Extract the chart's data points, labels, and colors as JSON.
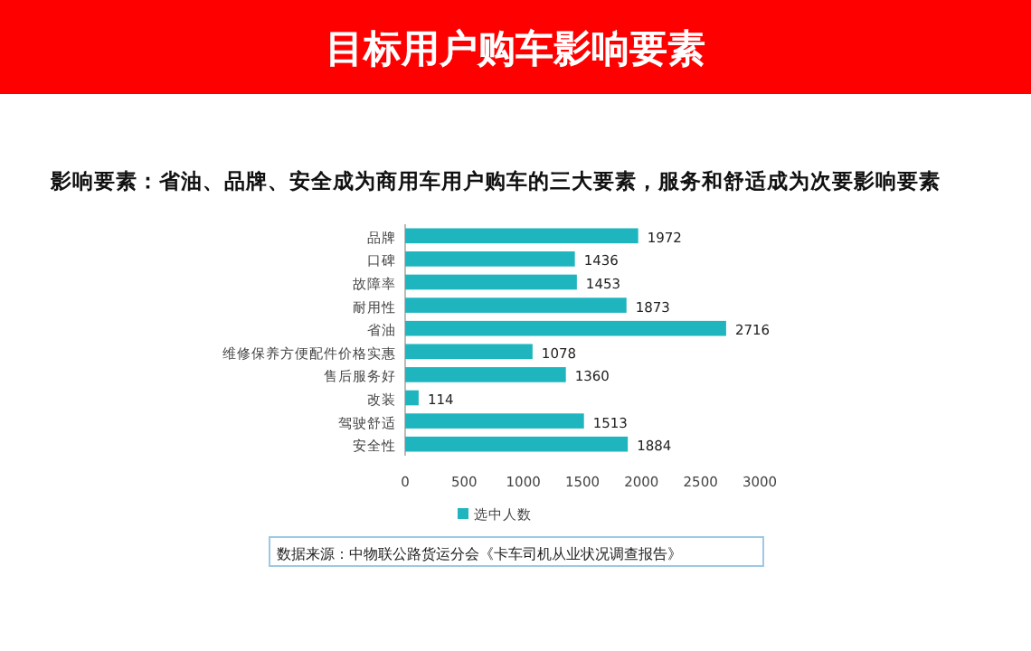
{
  "chart_data": {
    "type": "bar",
    "orientation": "horizontal",
    "title": "目标用户购车影响要素",
    "subtitle": "影响要素：省油、品牌、安全成为商用车用户购车的三大要素，服务和舒适成为次要影响要素",
    "categories": [
      "品牌",
      "口碑",
      "故障率",
      "耐用性",
      "省油",
      "维修保养方便配件价格实惠",
      "售后服务好",
      "改装",
      "驾驶舒适",
      "安全性"
    ],
    "series": [
      {
        "name": "选中人数",
        "color": "#1fb5bf",
        "values": [
          1972,
          1436,
          1453,
          1873,
          2716,
          1078,
          1360,
          114,
          1513,
          1884
        ]
      }
    ],
    "xlim": [
      0,
      3000
    ],
    "xticks": [
      0,
      500,
      1000,
      1500,
      2000,
      2500,
      3000
    ],
    "data_labels": true,
    "legend": "bottom",
    "grid": false,
    "annotations": [
      "数据来源：中物联公路货运分会《卡车司机从业状况调查报告》"
    ]
  }
}
